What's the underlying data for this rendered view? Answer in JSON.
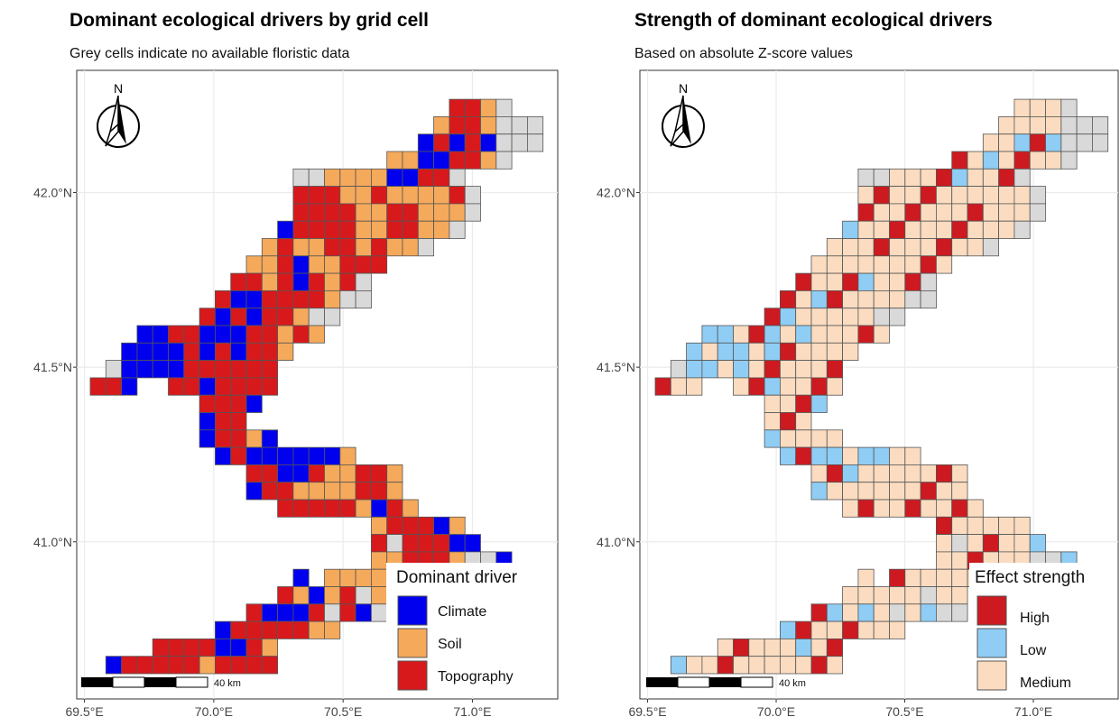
{
  "colors": {
    "climate": "#0000ee",
    "soil": "#f5a95b",
    "topography": "#d7191c",
    "high": "#cc1a20",
    "low": "#8fcdf5",
    "medium": "#fbdcc0",
    "nodata": "#d9d9d9",
    "cell_border": "#555555",
    "gridline": "#ebebeb"
  },
  "axes": {
    "x_ticks": [
      {
        "value": 69.5,
        "label": "69.5°E"
      },
      {
        "value": 70.0,
        "label": "70.0°E"
      },
      {
        "value": 70.5,
        "label": "70.5°E"
      },
      {
        "value": 71.0,
        "label": "71.0°E"
      }
    ],
    "y_ticks": [
      {
        "value": 42.0,
        "label": "42.0°N"
      },
      {
        "value": 41.5,
        "label": "41.5°N"
      },
      {
        "value": 41.0,
        "label": "41.0°N"
      }
    ],
    "lon_range": [
      69.47,
      71.33
    ],
    "lat_range": [
      40.55,
      42.35
    ]
  },
  "north_arrow_label": "N",
  "scalebar_label": "40 km",
  "panels": [
    {
      "title": "Dominant ecological drivers by grid cell",
      "subtitle": "Grey cells indicate no available floristic data",
      "legend_title": "Dominant driver",
      "legend_items": [
        {
          "label": "Climate",
          "color_key": "climate"
        },
        {
          "label": "Soil",
          "color_key": "soil"
        },
        {
          "label": "Topography",
          "color_key": "topography"
        }
      ]
    },
    {
      "title": "Strength of dominant ecological drivers",
      "subtitle": "Based on absolute Z-score values",
      "legend_title": "Effect strength",
      "legend_items": [
        {
          "label": "High",
          "color_key": "high"
        },
        {
          "label": "Low",
          "color_key": "low"
        },
        {
          "label": "Medium",
          "color_key": "medium"
        }
      ]
    }
  ],
  "grid_cell_deg": 0.05,
  "grid_origin": {
    "lon": 69.565,
    "lat": 40.6
  },
  "cells": [
    [
      "r",
      1,
      2,
      0,
      4,
      31,
      31,
      0,
      7,
      27,
      27,
      0,
      10,
      23,
      23,
      0,
      12,
      21,
      21,
      0,
      13,
      20,
      20,
      0,
      17,
      13,
      13,
      0
    ],
    [
      " ",
      1,
      1,
      0,
      4,
      30,
      31,
      0,
      7,
      26,
      27,
      0,
      10,
      22,
      23,
      0,
      12,
      20,
      21,
      0,
      13,
      19,
      20,
      0,
      17,
      12,
      13,
      0
    ]
  ],
  "driver_rows": [
    {
      "row": 32,
      "start": 23,
      "codes": "tTSg"
    },
    {
      "row": 31,
      "start": 22,
      "codes": "STTSggg"
    },
    {
      "row": 30,
      "start": 21,
      "codes": "CTCTCggg"
    },
    {
      "row": 29,
      "start": 19,
      "codes": "SSCCTTSg"
    },
    {
      "row": 28,
      "start": 13,
      "codes": "ggSSSSCCTTg"
    },
    {
      "row": 27,
      "start": 13,
      "codes": "TTTSSTSSSSTg"
    },
    {
      "row": 26,
      "start": 13,
      "codes": "TTTTSSTTSSSg"
    },
    {
      "row": 25,
      "start": 12,
      "codes": "CTTTTSSTTSSg"
    },
    {
      "row": 24,
      "start": 11,
      "codes": "STSSTTSTSSg"
    },
    {
      "row": 23,
      "start": 10,
      "codes": "SSTCSSTTT"
    },
    {
      "row": 22,
      "start": 9,
      "codes": "TTSTCTSTg"
    },
    {
      "row": 21,
      "start": 8,
      "codes": "TCCTTTTSgg"
    },
    {
      "row": 20,
      "start": 7,
      "codes": "TCTCTTSgg"
    },
    {
      "row": 19,
      "start": 3,
      "codes": "CCTTCCCTTSTS"
    },
    {
      "row": 18,
      "start": 2,
      "codes": "CCCCTCTCTTS"
    },
    {
      "row": 17,
      "start": 1,
      "codes": "gCCCCTTTTTT"
    },
    {
      "row": 16,
      "start": 0,
      "codes": "TTC..TTCTTTT"
    },
    {
      "row": 15,
      "start": 7,
      "codes": "TTTC"
    },
    {
      "row": 14,
      "start": 7,
      "codes": "CTT"
    },
    {
      "row": 13,
      "start": 7,
      "codes": "CTTSC"
    },
    {
      "row": 12,
      "start": 8,
      "codes": "CTCCCCCCS"
    },
    {
      "row": 11,
      "start": 10,
      "codes": "TTCCTSSTTS"
    },
    {
      "row": 10,
      "start": 10,
      "codes": "CTTSSSSTTS"
    },
    {
      "row": 9,
      "start": 12,
      "codes": "TTTTTSCTS"
    },
    {
      "row": 8,
      "start": 18,
      "codes": "STTTCS"
    },
    {
      "row": 7,
      "start": 18,
      "codes": "TgTTTCC"
    },
    {
      "row": 6,
      "start": 18,
      "codes": "SSTTTSggC"
    },
    {
      "row": 5,
      "start": 13,
      "codes": "C.SSSSSTTTTT"
    },
    {
      "row": 4,
      "start": 12,
      "codes": "TSCSTgSS.STTT"
    },
    {
      "row": 3,
      "start": 10,
      "codes": "TCCCTgTCgg"
    },
    {
      "row": 2,
      "start": 8,
      "codes": "CTTTTTSS"
    },
    {
      "row": 1,
      "start": 4,
      "codes": "TTTTCCTS"
    },
    {
      "row": 0,
      "start": 1,
      "codes": "CTTTTTSTTTT"
    }
  ]
}
